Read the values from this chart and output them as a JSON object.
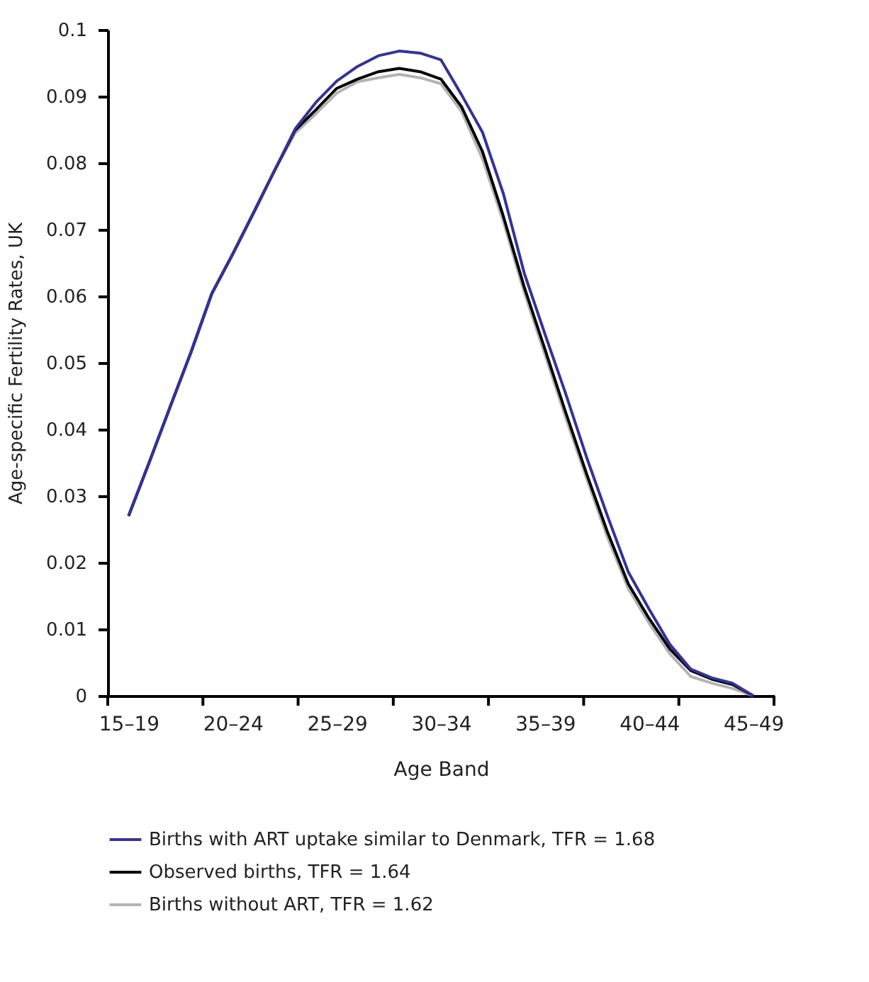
{
  "chart_data": {
    "type": "line",
    "xlabel": "Age Band",
    "ylabel": "Age-specific Fertility Rates, UK",
    "categories": [
      "15–19",
      null,
      null,
      null,
      null,
      "20–24",
      null,
      null,
      null,
      null,
      "25–29",
      null,
      null,
      null,
      null,
      "30–34",
      null,
      null,
      null,
      null,
      "35–39",
      null,
      null,
      null,
      null,
      "40–44",
      null,
      null,
      null,
      null,
      "45–49"
    ],
    "series": [
      {
        "name": "Births with ART uptake similar to Denmark, TFR = 1.68",
        "color": "#333399",
        "values": [
          0.027,
          0.0351,
          0.0434,
          0.0516,
          0.0604,
          0.0663,
          0.0725,
          0.0788,
          0.0851,
          0.0891,
          0.0923,
          0.0945,
          0.0961,
          0.0968,
          0.0965,
          0.0955,
          0.0902,
          0.0846,
          0.0754,
          0.0635,
          0.0543,
          0.0453,
          0.0358,
          0.027,
          0.0186,
          0.013,
          0.0077,
          0.004,
          0.0027,
          0.0019,
          0.0
        ]
      },
      {
        "name": "Observed births, TFR = 1.64",
        "color": "#000000",
        "values": [
          0.027,
          0.0351,
          0.0434,
          0.0516,
          0.0604,
          0.0663,
          0.0725,
          0.0788,
          0.0849,
          0.088,
          0.0912,
          0.0926,
          0.0937,
          0.0942,
          0.0937,
          0.0926,
          0.0884,
          0.0817,
          0.072,
          0.0614,
          0.052,
          0.0425,
          0.0333,
          0.0246,
          0.0168,
          0.0116,
          0.007,
          0.0038,
          0.0025,
          0.0017,
          0.0
        ]
      },
      {
        "name": "Births without ART, TFR = 1.62",
        "color": "#b3b3b3",
        "values": [
          0.027,
          0.0351,
          0.0434,
          0.0516,
          0.0604,
          0.0663,
          0.0725,
          0.0788,
          0.0845,
          0.0874,
          0.0905,
          0.0922,
          0.0928,
          0.0933,
          0.0928,
          0.0919,
          0.0877,
          0.0806,
          0.0712,
          0.0606,
          0.0512,
          0.0417,
          0.0326,
          0.0238,
          0.0161,
          0.0109,
          0.0063,
          0.0029,
          0.0019,
          0.0011,
          0.0
        ]
      }
    ],
    "ylim": [
      0,
      0.1
    ],
    "yticks": [
      0,
      0.01,
      0.02,
      0.03,
      0.04,
      0.05,
      0.06,
      0.07,
      0.08,
      0.09,
      0.1
    ],
    "grid": false,
    "legend": "bottom",
    "marker": "none",
    "line_style": "solid"
  }
}
